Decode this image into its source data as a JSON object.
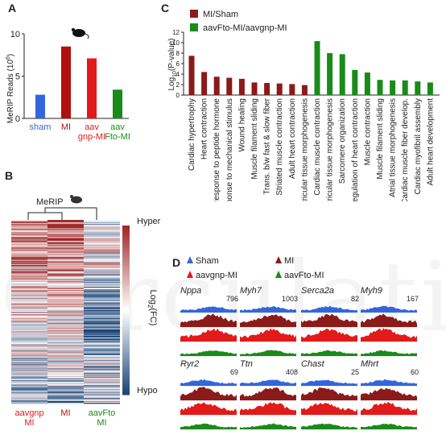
{
  "watermark": "Circulation",
  "panel_a": {
    "letter": "A",
    "ylabel": "MeRIP Reads (10",
    "ylabel_sup": "6",
    "ylabel_end": ")",
    "chart_data": {
      "type": "bar",
      "categories": [
        "sham",
        "MI",
        "aav gnp-MI",
        "aav Fto-MI"
      ],
      "category_lines": [
        [
          "sham"
        ],
        [
          "MI"
        ],
        [
          "aav",
          "gnp-MI"
        ],
        [
          "aav",
          "Fto-MI"
        ]
      ],
      "category_colors": [
        "#3366dd",
        "#b01010",
        "#e21a1a",
        "#1a8a1a"
      ],
      "values": [
        2.8,
        8.5,
        7.1,
        3.4
      ],
      "ylim": [
        0,
        10
      ],
      "yticks": [
        0,
        5,
        10
      ]
    }
  },
  "panel_b": {
    "letter": "B",
    "title": "MeRIP",
    "label_hyper": "Hyper",
    "label_hypo": "Hypo",
    "colorbar_label": "Log",
    "colorbar_sub": "2",
    "colorbar_end": "(FC)",
    "columns": [
      {
        "lines": [
          "aavgnp",
          "MI"
        ],
        "color": "#e21a1a"
      },
      {
        "lines": [
          "MI"
        ],
        "color": "#b01010"
      },
      {
        "lines": [
          "aavFto",
          "MI"
        ],
        "color": "#1a8a1a"
      }
    ]
  },
  "panel_c": {
    "letter": "C",
    "ylabel": "Log",
    "ylabel_sub": "10",
    "ylabel_end": "(P-value)",
    "legend": [
      {
        "label": "MI/Sham",
        "color": "#8b1a1a"
      },
      {
        "label": "aavFto-MI/aavgnp-MI",
        "color": "#1a8a1a"
      }
    ],
    "chart_data": {
      "type": "bar",
      "ylim": [
        0,
        12
      ],
      "yticks": [
        0,
        2,
        4,
        6,
        8,
        10,
        12
      ],
      "series": [
        {
          "name": "MI/Sham",
          "categories": [
            "Cardiac hypertrophy",
            "Heart contraction",
            "Response to peptide hormone",
            "Response to mechanical stimulus",
            "Wound healing",
            "Muscle filament sliding",
            "Trans. b/w fast & slow fiber",
            "Striated muscle contraction",
            "Adult heart contraction",
            "Ventricular tissue morphogenesis"
          ],
          "values": [
            7.5,
            4.4,
            3.5,
            3.3,
            3.1,
            2.4,
            2.3,
            2.2,
            2.1,
            1.9
          ]
        },
        {
          "name": "aavFto-MI/aavgnp-MI",
          "categories": [
            "Cardiac muscle contraction",
            "Ventricular tissue morphogenesis",
            "Sarcomere organization",
            "Regulation of heart contraction",
            "Muscle contraction",
            "Muscle filament sliding",
            "Atrial tissue morphogenesis",
            "Cardiac muscle fiber develop.",
            "Cardiac myofibril assembly",
            "Adult heart development"
          ],
          "values": [
            10.3,
            8.0,
            7.8,
            4.8,
            4.3,
            2.9,
            2.8,
            2.8,
            2.6,
            2.4
          ]
        }
      ]
    }
  },
  "panel_d": {
    "letter": "D",
    "legend": [
      {
        "label": "Sham",
        "color": "#3366dd"
      },
      {
        "label": "MI",
        "color": "#8b1a1a"
      },
      {
        "label": "aavgnp-MI",
        "color": "#e21a1a"
      },
      {
        "label": "aavFto-MI",
        "color": "#1a8a1a"
      }
    ],
    "genes": [
      {
        "name": "Nppa",
        "scale": "796"
      },
      {
        "name": "Myh7",
        "scale": "1003"
      },
      {
        "name": "Serca2a",
        "scale": "82"
      },
      {
        "name": "Myh9",
        "scale": "167"
      },
      {
        "name": "Ryr2",
        "scale": "69"
      },
      {
        "name": "Ttn",
        "scale": "408"
      },
      {
        "name": "Chast",
        "scale": "25"
      },
      {
        "name": "Mhrt",
        "scale": "60"
      }
    ],
    "track_colors": [
      "#3366dd",
      "#8b1a1a",
      "#e21a1a",
      "#1a8a1a"
    ]
  }
}
